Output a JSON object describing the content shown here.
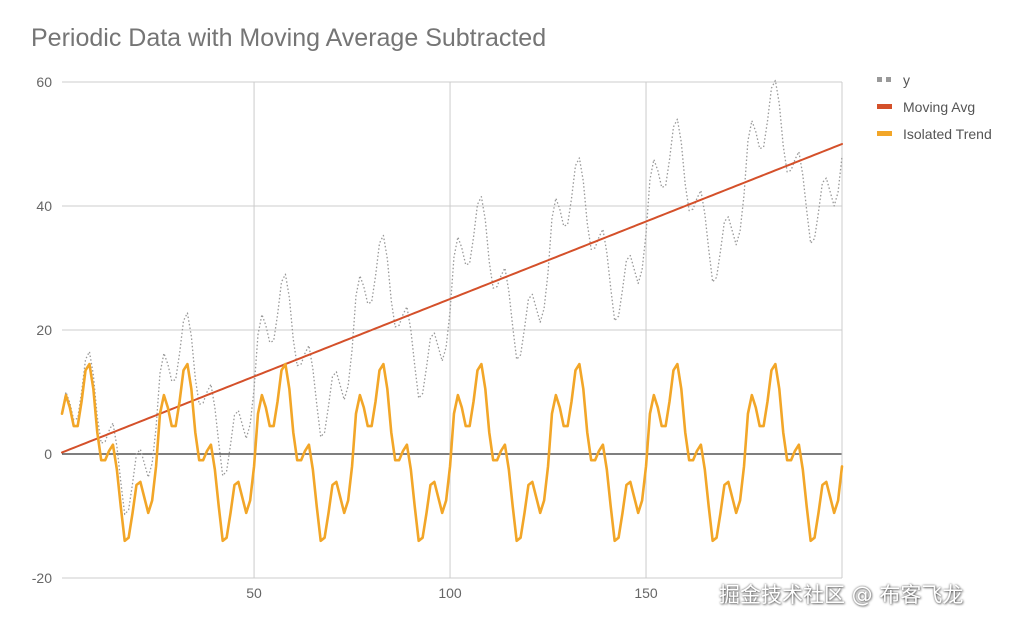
{
  "chart_data": {
    "type": "line",
    "title": "Periodic Data with Moving Average Subtracted",
    "xlabel": "",
    "ylabel": "",
    "xlim": [
      1,
      200
    ],
    "ylim": [
      -20,
      60
    ],
    "x_ticks": [
      50,
      100,
      150
    ],
    "y_ticks": [
      -20,
      0,
      20,
      40,
      60
    ],
    "x_tick_labels": [
      "50",
      "100",
      "150"
    ],
    "y_tick_labels": [
      "-20",
      "0",
      "20",
      "40",
      "60"
    ],
    "grid": true,
    "legend_position": "right",
    "period": 25,
    "x_start": 1,
    "x_end": 200,
    "moving_avg": {
      "start": 0.25,
      "slope": 0.25
    },
    "cycle_values": [
      6.5,
      9.5,
      7.5,
      4.5,
      4.5,
      8.5,
      13.5,
      14.5,
      10.5,
      3.5,
      -1.0,
      -1.0,
      0.5,
      1.5,
      -2.5,
      -8.5,
      -14.0,
      -13.5,
      -9.5,
      -5.0,
      -4.5,
      -7.0,
      -9.5,
      -7.5,
      -2.0
    ],
    "series": [
      {
        "name": "y",
        "color": "#999999",
        "style": "dotted",
        "formula": "moving_avg + cycle_values"
      },
      {
        "name": "Moving Avg",
        "color": "#d4502a",
        "style": "solid",
        "formula": "moving_avg"
      },
      {
        "name": "Isolated Trend",
        "color": "#f2a628",
        "style": "solid",
        "formula": "cycle_values"
      }
    ]
  },
  "watermark": {
    "text": "掘金技术社区 @ 布客飞龙"
  }
}
